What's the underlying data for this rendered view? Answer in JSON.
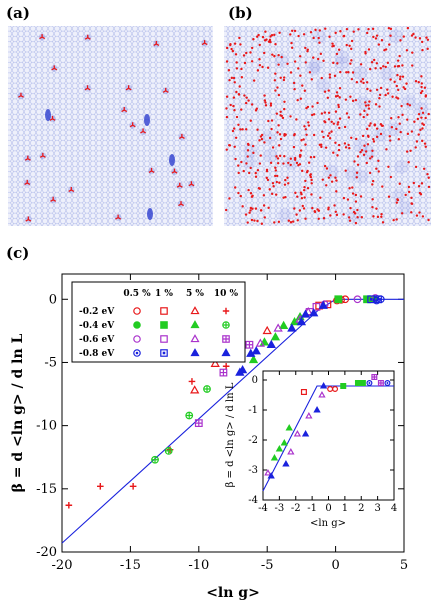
{
  "panels": [
    {
      "label": "(a)",
      "kind": "lattice-map",
      "color_red": "#e8181a",
      "color_blue": "#2233cc"
    },
    {
      "label": "(b)",
      "kind": "lattice-map",
      "color_red": "#e8181a",
      "color_blue": "#2233cc"
    },
    {
      "label": "(c)"
    }
  ],
  "chart_data": [
    {
      "type": "scatter",
      "title": "",
      "xlabel": "<ln g>",
      "ylabel": "β = d <ln g> / d ln L",
      "xlim": [
        -20,
        5
      ],
      "ylim": [
        -20,
        2
      ],
      "xticks": [
        "-20",
        "-15",
        "-10",
        "-5",
        "0",
        "5"
      ],
      "yticks": [
        "0",
        "-5",
        "-10",
        "-15",
        "-20"
      ],
      "xtick_values": [
        -20,
        -15,
        -10,
        -5,
        0,
        5
      ],
      "ytick_values": [
        0,
        -5,
        -10,
        -15,
        -20
      ],
      "grid": false,
      "legend": {
        "placement": "top-left",
        "columns": [
          "0.5 %",
          "1 %",
          "5 %",
          "10 %"
        ],
        "rows": [
          "-0.2 eV",
          "-0.4 eV",
          "-0.6 eV",
          "-0.8 eV"
        ]
      },
      "colors": {
        "-0.2 eV": "#e8181a",
        "-0.4 eV": "#22cc22",
        "-0.6 eV": "#aa33cc",
        "-0.8 eV": "#1a22dd",
        "curve": "#1a22dd"
      },
      "curve": {
        "name": "",
        "x": [
          -20,
          -1.3,
          0,
          5
        ],
        "y": [
          -19.3,
          -0.9,
          0,
          0
        ]
      },
      "series": [
        {
          "energy": "-0.2 eV",
          "conc": "0.5 %",
          "marker": "circle-open",
          "x": [
            0.1,
            0.4,
            0.7
          ],
          "y": [
            -0.1,
            -0.05,
            0
          ]
        },
        {
          "energy": "-0.2 eV",
          "conc": "1 %",
          "marker": "square-open",
          "x": [
            -1.2,
            -0.6
          ],
          "y": [
            -0.5,
            -0.4
          ]
        },
        {
          "energy": "-0.2 eV",
          "conc": "5 %",
          "marker": "triangle-open",
          "x": [
            -5.0,
            -8.8,
            -10.3
          ],
          "y": [
            -2.5,
            -5.1,
            -7.2
          ]
        },
        {
          "energy": "-0.2 eV",
          "conc": "10 %",
          "marker": "plus",
          "x": [
            -19.5,
            -17.2,
            -14.8,
            -12.1,
            -10.5,
            -8.0
          ],
          "y": [
            -16.3,
            -14.8,
            -14.8,
            -11.9,
            -6.5,
            -5.3
          ]
        },
        {
          "energy": "-0.4 eV",
          "conc": "0.5 %",
          "marker": "circle-filled",
          "x": [
            2.5,
            2.8
          ],
          "y": [
            0,
            0
          ]
        },
        {
          "energy": "-0.4 eV",
          "conc": "1 %",
          "marker": "square-filled",
          "x": [
            0.2,
            2.3
          ],
          "y": [
            0,
            0
          ]
        },
        {
          "energy": "-0.4 eV",
          "conc": "5 %",
          "marker": "triangle-filled",
          "x": [
            -6.0,
            -5.2,
            -4.4,
            -3.8,
            -3.0,
            -2.6
          ],
          "y": [
            -4.8,
            -3.4,
            -3.0,
            -2.1,
            -1.8,
            -1.4
          ]
        },
        {
          "energy": "-0.4 eV",
          "conc": "10 %",
          "marker": "circle-plus",
          "x": [
            -13.2,
            -12.2,
            -10.7,
            -9.4
          ],
          "y": [
            -12.7,
            -12.0,
            -9.2,
            -7.1
          ]
        },
        {
          "energy": "-0.6 eV",
          "conc": "0.5 %",
          "marker": "circle-open",
          "x": [
            -0.8,
            1.6,
            2.9
          ],
          "y": [
            -0.4,
            0,
            0.1
          ]
        },
        {
          "energy": "-0.6 eV",
          "conc": "1 %",
          "marker": "square-open",
          "x": [
            -1.9,
            -1.4
          ],
          "y": [
            -1.0,
            -0.6
          ]
        },
        {
          "energy": "-0.6 eV",
          "conc": "5 %",
          "marker": "triangle-open",
          "x": [
            -5.5,
            -4.2,
            -2.6,
            -2.0
          ],
          "y": [
            -3.5,
            -2.3,
            -1.6,
            -1.0
          ]
        },
        {
          "energy": "-0.6 eV",
          "conc": "10 %",
          "marker": "square-plus",
          "x": [
            -10.0,
            -8.2,
            -6.3
          ],
          "y": [
            -9.8,
            -5.8,
            -3.6
          ]
        },
        {
          "energy": "-0.8 eV",
          "conc": "0.5 %",
          "marker": "circle-dot",
          "x": [
            3.0,
            3.3
          ],
          "y": [
            -0.1,
            0
          ]
        },
        {
          "energy": "-0.8 eV",
          "conc": "1 %",
          "marker": "square-dot",
          "x": [
            2.6,
            3.1
          ],
          "y": [
            0,
            0
          ]
        },
        {
          "energy": "-0.8 eV",
          "conc": "5 %",
          "marker": "triangle-filled",
          "x": [
            -7.0,
            -6.2,
            -4.7,
            -2.5,
            -1.6,
            -0.9
          ],
          "y": [
            -5.8,
            -4.3,
            -3.6,
            -1.8,
            -1.1,
            -0.5
          ]
        },
        {
          "energy": "-0.8 eV",
          "conc": "10 %",
          "marker": "triangle-filled",
          "x": [
            -6.8,
            -5.8,
            -3.2,
            -2.2
          ],
          "y": [
            -5.6,
            -4.1,
            -2.3,
            -1.2
          ]
        }
      ]
    },
    {
      "type": "scatter",
      "title": "",
      "xlabel": "<ln g>",
      "ylabel": "β = d <ln g> / d ln L",
      "xlim": [
        -4,
        4
      ],
      "ylim": [
        -4,
        0.3
      ],
      "xticks": [
        "-4",
        "-3",
        "-2",
        "-1",
        "0",
        "1",
        "2",
        "3",
        "4"
      ],
      "yticks": [
        "0",
        "-1",
        "-2",
        "-3",
        "-4"
      ],
      "xtick_values": [
        -4,
        -3,
        -2,
        -1,
        0,
        1,
        2,
        3,
        4
      ],
      "ytick_values": [
        0,
        -1,
        -2,
        -3,
        -4
      ],
      "curve": {
        "name": "",
        "x": [
          -4,
          -0.7,
          4
        ],
        "y": [
          -3.7,
          -0.2,
          -0.2
        ]
      },
      "series": [
        {
          "energy": "-0.2 eV",
          "marker": "square-open",
          "x": [
            -1.5
          ],
          "y": [
            -0.4
          ]
        },
        {
          "energy": "-0.2 eV",
          "marker": "circle-open",
          "x": [
            0.1,
            0.4
          ],
          "y": [
            -0.3,
            -0.3
          ]
        },
        {
          "energy": "-0.4 eV",
          "marker": "triangle-filled",
          "x": [
            -3.3,
            -3.0,
            -2.7,
            -2.4
          ],
          "y": [
            -2.6,
            -2.3,
            -2.1,
            -1.6
          ]
        },
        {
          "energy": "-0.4 eV",
          "marker": "square-filled",
          "x": [
            0.9,
            1.8,
            2.1
          ],
          "y": [
            -0.2,
            -0.1,
            -0.1
          ]
        },
        {
          "energy": "-0.6 eV",
          "marker": "triangle-open",
          "x": [
            -3.7,
            -2.3,
            -1.9,
            -1.2,
            -0.4
          ],
          "y": [
            -3.1,
            -2.4,
            -1.8,
            -1.2,
            -0.5
          ]
        },
        {
          "energy": "-0.6 eV",
          "marker": "square-plus",
          "x": [
            2.8,
            3.2
          ],
          "y": [
            0.1,
            -0.1
          ]
        },
        {
          "energy": "-0.8 eV",
          "marker": "triangle-filled",
          "x": [
            -3.5,
            -2.6,
            -1.4,
            -0.7,
            -0.3
          ],
          "y": [
            -3.2,
            -2.8,
            -1.8,
            -1.0,
            -0.2
          ]
        },
        {
          "energy": "-0.8 eV",
          "marker": "circle-dot",
          "x": [
            2.5,
            3.6
          ],
          "y": [
            -0.1,
            -0.1
          ]
        }
      ]
    }
  ]
}
